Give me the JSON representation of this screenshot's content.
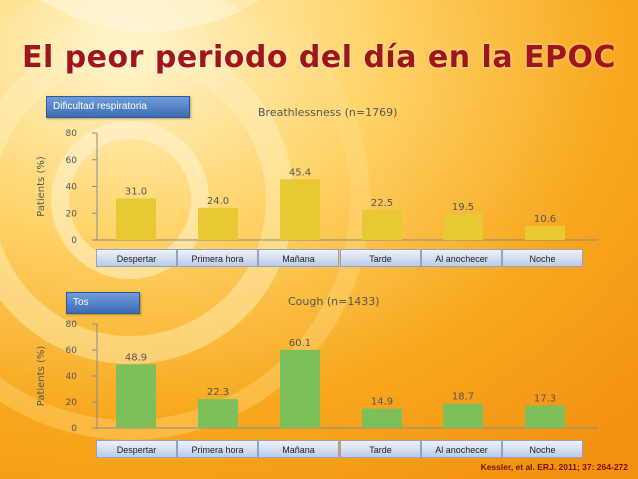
{
  "slide": {
    "title": "El peor periodo del día en la EPOC",
    "citation": "Kessler, et al. ERJ. 2011; 37: 264-272"
  },
  "sections": [
    {
      "badge": "Dificultad respiratoria"
    },
    {
      "badge": "Tos"
    }
  ],
  "categories": [
    "Despertar",
    "Primera hora",
    "Mañana",
    "Tarde",
    "Al anochecer",
    "Noche"
  ],
  "colors": {
    "breathlessness": "#e8c833",
    "cough": "#7dc05a",
    "title": "#a0141c",
    "badge": "#4a7cc4"
  },
  "chart_data": [
    {
      "type": "bar",
      "title": "Breathlessness (n=1769)",
      "ylabel": "Patients (%)",
      "xlabel": "",
      "ylim": [
        0,
        80
      ],
      "yticks": [
        0,
        20,
        40,
        60,
        80
      ],
      "categories": [
        "Despertar",
        "Primera hora",
        "Mañana",
        "Tarde",
        "Al anochecer",
        "Noche"
      ],
      "values": [
        31.0,
        24.0,
        45.4,
        22.5,
        19.5,
        10.6
      ],
      "value_labels": [
        "31.0",
        "24.0",
        "45.4",
        "22.5",
        "19.5",
        "10.6"
      ],
      "color": "#e8c833",
      "grid": false
    },
    {
      "type": "bar",
      "title": "Cough (n=1433)",
      "ylabel": "Patients (%)",
      "xlabel": "",
      "ylim": [
        0,
        80
      ],
      "yticks": [
        0,
        20,
        40,
        60,
        80
      ],
      "categories": [
        "Despertar",
        "Primera hora",
        "Mañana",
        "Tarde",
        "Al anochecer",
        "Noche"
      ],
      "values": [
        48.9,
        22.3,
        60.1,
        14.9,
        18.7,
        17.3
      ],
      "value_labels": [
        "48.9",
        "22.3",
        "60.1",
        "14.9",
        "18.7",
        "17.3"
      ],
      "color": "#7dc05a",
      "grid": false
    }
  ]
}
